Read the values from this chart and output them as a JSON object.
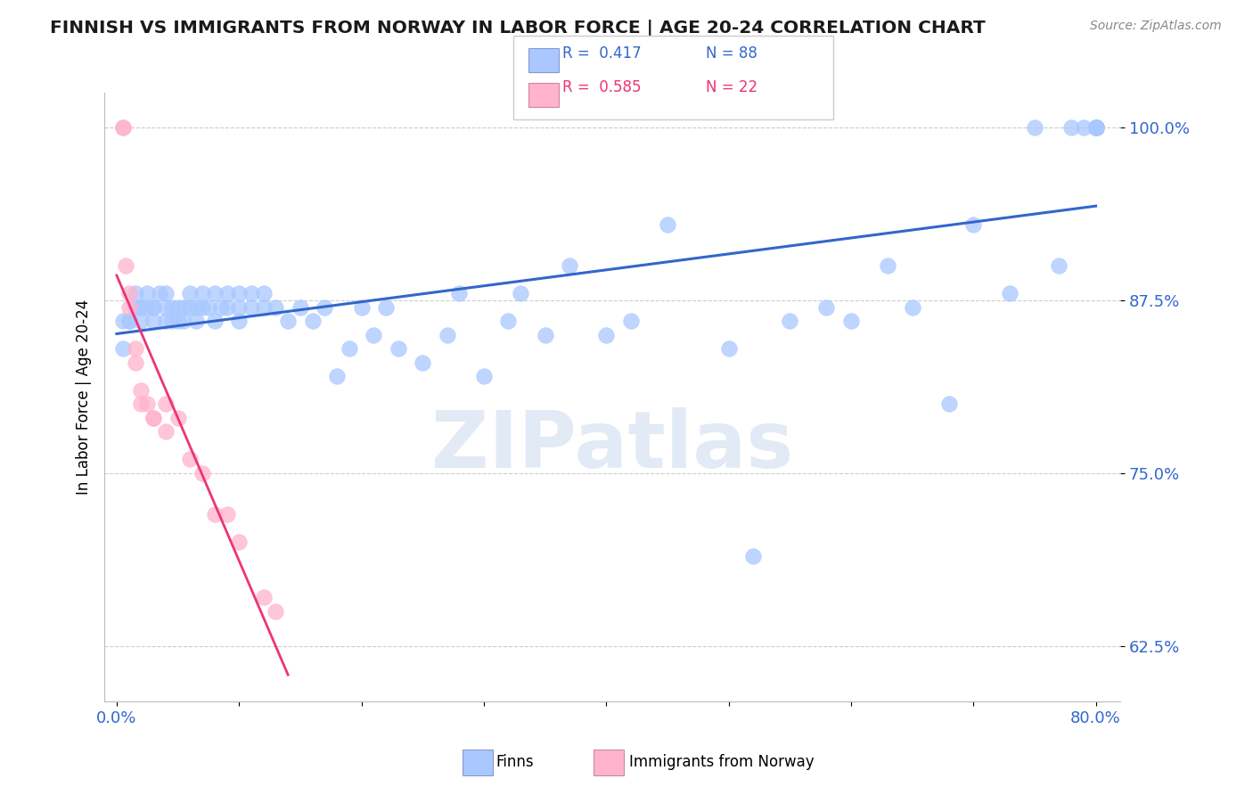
{
  "title": "FINNISH VS IMMIGRANTS FROM NORWAY IN LABOR FORCE | AGE 20-24 CORRELATION CHART",
  "source_text": "Source: ZipAtlas.com",
  "ylabel": "In Labor Force | Age 20-24",
  "xlim": [
    -0.01,
    0.82
  ],
  "ylim": [
    0.585,
    1.025
  ],
  "xticks": [
    0.0,
    0.1,
    0.2,
    0.3,
    0.4,
    0.5,
    0.6,
    0.7,
    0.8
  ],
  "xticklabels": [
    "0.0%",
    "",
    "",
    "",
    "",
    "",
    "",
    "",
    "80.0%"
  ],
  "yticks": [
    0.625,
    0.75,
    0.875,
    1.0
  ],
  "yticklabels": [
    "62.5%",
    "75.0%",
    "87.5%",
    "100.0%"
  ],
  "blue_color": "#a8c8ff",
  "pink_color": "#ffb3cc",
  "blue_line_color": "#3366cc",
  "pink_line_color": "#ee3377",
  "watermark_text": "ZIPatlas",
  "finns_x": [
    0.005,
    0.005,
    0.01,
    0.01,
    0.015,
    0.015,
    0.02,
    0.02,
    0.02,
    0.025,
    0.025,
    0.03,
    0.03,
    0.03,
    0.035,
    0.04,
    0.04,
    0.04,
    0.045,
    0.045,
    0.05,
    0.05,
    0.055,
    0.055,
    0.06,
    0.06,
    0.065,
    0.065,
    0.07,
    0.07,
    0.075,
    0.08,
    0.08,
    0.085,
    0.09,
    0.09,
    0.1,
    0.1,
    0.1,
    0.11,
    0.11,
    0.12,
    0.12,
    0.13,
    0.14,
    0.15,
    0.16,
    0.17,
    0.18,
    0.19,
    0.2,
    0.21,
    0.22,
    0.23,
    0.25,
    0.27,
    0.28,
    0.3,
    0.32,
    0.33,
    0.35,
    0.37,
    0.4,
    0.42,
    0.45,
    0.5,
    0.52,
    0.55,
    0.58,
    0.6,
    0.63,
    0.65,
    0.68,
    0.7,
    0.73,
    0.75,
    0.77,
    0.78,
    0.79,
    0.8,
    0.8,
    0.8,
    0.8,
    0.8,
    0.8,
    0.8,
    0.8,
    0.8
  ],
  "finns_y": [
    0.84,
    0.86,
    0.86,
    0.86,
    0.87,
    0.88,
    0.86,
    0.87,
    0.87,
    0.87,
    0.88,
    0.87,
    0.86,
    0.87,
    0.88,
    0.86,
    0.87,
    0.88,
    0.86,
    0.87,
    0.86,
    0.87,
    0.86,
    0.87,
    0.87,
    0.88,
    0.86,
    0.87,
    0.87,
    0.88,
    0.87,
    0.86,
    0.88,
    0.87,
    0.87,
    0.88,
    0.87,
    0.86,
    0.88,
    0.87,
    0.88,
    0.87,
    0.88,
    0.87,
    0.86,
    0.87,
    0.86,
    0.87,
    0.82,
    0.84,
    0.87,
    0.85,
    0.87,
    0.84,
    0.83,
    0.85,
    0.88,
    0.82,
    0.86,
    0.88,
    0.85,
    0.9,
    0.85,
    0.86,
    0.93,
    0.84,
    0.69,
    0.86,
    0.87,
    0.86,
    0.9,
    0.87,
    0.8,
    0.93,
    0.88,
    1.0,
    0.9,
    1.0,
    1.0,
    1.0,
    1.0,
    1.0,
    1.0,
    1.0,
    1.0,
    1.0,
    1.0,
    1.0
  ],
  "norway_x": [
    0.005,
    0.005,
    0.007,
    0.01,
    0.01,
    0.015,
    0.015,
    0.02,
    0.02,
    0.025,
    0.03,
    0.03,
    0.04,
    0.04,
    0.05,
    0.06,
    0.07,
    0.08,
    0.09,
    0.1,
    0.12,
    0.13
  ],
  "norway_y": [
    1.0,
    1.0,
    0.9,
    0.88,
    0.87,
    0.84,
    0.83,
    0.81,
    0.8,
    0.8,
    0.79,
    0.79,
    0.8,
    0.78,
    0.79,
    0.76,
    0.75,
    0.72,
    0.72,
    0.7,
    0.66,
    0.65
  ]
}
